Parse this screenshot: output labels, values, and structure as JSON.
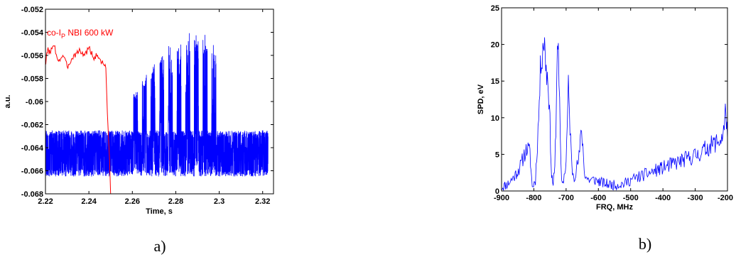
{
  "chart_data": [
    {
      "type": "line",
      "panel_label": "a)",
      "xlabel": "Time, s",
      "ylabel": "a.u.",
      "xlim": [
        2.22,
        2.325
      ],
      "ylim": [
        -0.068,
        -0.052
      ],
      "xticks": [
        "2.22",
        "2.24",
        "2.26",
        "2.28",
        "2.3",
        "2.32"
      ],
      "yticks": [
        "-0.052",
        "-0.054",
        "-0.056",
        "-0.058",
        "-0.06",
        "-0.062",
        "-0.064",
        "-0.066",
        "-0.068"
      ],
      "annotation": {
        "prefix": "co-I",
        "subscript": "P",
        "suffix": " NBI 600 kW"
      },
      "grid": false,
      "series_colors": [
        "#ff0000",
        "#0000ff"
      ],
      "red_series": {
        "x": [
          2.22,
          2.221,
          2.222,
          2.224,
          2.226,
          2.228,
          2.23,
          2.232,
          2.234,
          2.236,
          2.238,
          2.24,
          2.242,
          2.244,
          2.246,
          2.2475,
          2.2478,
          2.2485,
          2.2495,
          2.25,
          2.325
        ],
        "y": [
          -0.0568,
          -0.0555,
          -0.0557,
          -0.0552,
          -0.0565,
          -0.056,
          -0.057,
          -0.0563,
          -0.0558,
          -0.0556,
          -0.056,
          -0.0553,
          -0.0562,
          -0.056,
          -0.0566,
          -0.0568,
          -0.0571,
          -0.061,
          -0.065,
          -0.068,
          -0.068
        ]
      },
      "blue_series": {
        "baseline_band": [
          -0.0665,
          -0.0625
        ],
        "t_start": 2.22,
        "t_end": 2.3225,
        "pulses": [
          {
            "start": 2.2605,
            "end": 2.2625,
            "peak": -0.0586
          },
          {
            "start": 2.2645,
            "end": 2.2665,
            "peak": -0.0572
          },
          {
            "start": 2.2685,
            "end": 2.2705,
            "peak": -0.0562
          },
          {
            "start": 2.2725,
            "end": 2.2745,
            "peak": -0.0552
          },
          {
            "start": 2.2765,
            "end": 2.2785,
            "peak": -0.0547
          },
          {
            "start": 2.2805,
            "end": 2.2825,
            "peak": -0.0542
          },
          {
            "start": 2.2845,
            "end": 2.2865,
            "peak": -0.0536
          },
          {
            "start": 2.2885,
            "end": 2.2905,
            "peak": -0.0534
          },
          {
            "start": 2.2925,
            "end": 2.2945,
            "peak": -0.0533
          },
          {
            "start": 2.2965,
            "end": 2.2985,
            "peak": -0.0545
          }
        ]
      }
    },
    {
      "type": "line",
      "panel_label": "b)",
      "xlabel": "FRQ, MHz",
      "ylabel": "SPD, eV",
      "xlim": [
        -900,
        -200
      ],
      "ylim": [
        0,
        25
      ],
      "xticks": [
        "-900",
        "-800",
        "-700",
        "-600",
        "-500",
        "-400",
        "-300",
        "-200"
      ],
      "yticks": [
        "0",
        "5",
        "10",
        "15",
        "20",
        "25"
      ],
      "grid": false,
      "series_colors": [
        "#0000ff"
      ],
      "spectrum": {
        "x": [
          -900,
          -880,
          -860,
          -840,
          -830,
          -820,
          -812,
          -805,
          -795,
          -785,
          -778,
          -770,
          -765,
          -760,
          -755,
          -750,
          -745,
          -740,
          -735,
          -730,
          -727,
          -724,
          -720,
          -716,
          -712,
          -706,
          -700,
          -693,
          -688,
          -682,
          -675,
          -668,
          -660,
          -652,
          -648,
          -644,
          -640,
          -630,
          -610,
          -580,
          -550,
          -520,
          -500,
          -470,
          -440,
          -410,
          -380,
          -350,
          -320,
          -290,
          -260,
          -240,
          -220,
          -210,
          -205,
          -200
        ],
        "y": [
          0.5,
          1.0,
          2.0,
          3.5,
          5.0,
          5.8,
          5.2,
          0.5,
          1.5,
          10.0,
          18.0,
          20.8,
          19.0,
          16.0,
          15.0,
          9.0,
          2.0,
          1.0,
          3.0,
          12.0,
          22.0,
          18.0,
          11.0,
          3.0,
          1.0,
          2.0,
          4.0,
          14.0,
          9.0,
          3.0,
          2.0,
          3.0,
          4.5,
          8.5,
          6.0,
          3.0,
          2.0,
          1.5,
          1.5,
          1.0,
          0.8,
          1.0,
          1.5,
          2.0,
          2.5,
          3.0,
          3.5,
          4.0,
          4.5,
          5.0,
          6.0,
          6.5,
          7.0,
          8.5,
          11.5,
          7.0
        ]
      }
    }
  ]
}
